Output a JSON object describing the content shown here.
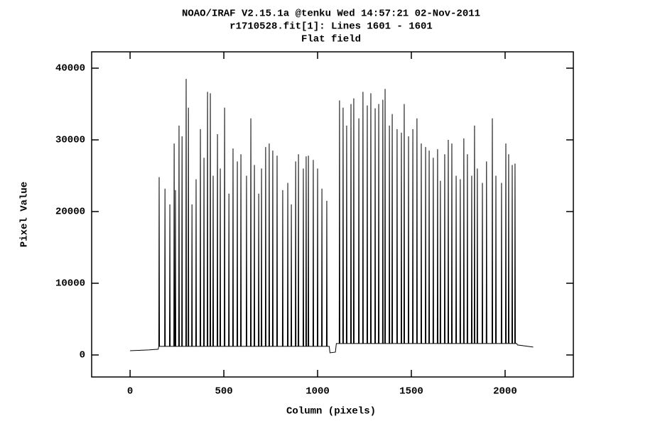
{
  "chart_data": {
    "type": "line",
    "title": [
      "NOAO/IRAF V2.15.1a @tenku Wed 14:57:21 02-Nov-2011",
      "r1710528.fit[1]: Lines 1601 - 1601",
      "Flat field"
    ],
    "xlabel": "Column (pixels)",
    "ylabel": "Pixel Value",
    "color": "#000000",
    "xlim": [
      -205,
      2364
    ],
    "ylim": [
      -3070,
      42280
    ],
    "xticks": [
      0,
      500,
      1000,
      1500,
      2000
    ],
    "yticks": [
      0,
      10000,
      20000,
      30000,
      40000
    ],
    "x": [
      0,
      100,
      150,
      153,
      155,
      157,
      184,
      186,
      188,
      210,
      212,
      214,
      233,
      235,
      237,
      240,
      242,
      244,
      259,
      261,
      263,
      275,
      277,
      279,
      297,
      299,
      301,
      309,
      311,
      313,
      328,
      330,
      332,
      350,
      352,
      354,
      373,
      375,
      377,
      392,
      394,
      396,
      411,
      413,
      415,
      426,
      428,
      430,
      441,
      443,
      445,
      464,
      466,
      468,
      479,
      481,
      483,
      502,
      504,
      506,
      525,
      527,
      529,
      547,
      549,
      551,
      570,
      572,
      574,
      589,
      591,
      593,
      619,
      621,
      623,
      642,
      644,
      646,
      661,
      663,
      665,
      684,
      686,
      688,
      699,
      701,
      703,
      721,
      723,
      725,
      740,
      742,
      744,
      759,
      761,
      763,
      782,
      784,
      786,
      812,
      814,
      816,
      839,
      841,
      843,
      858,
      860,
      862,
      881,
      883,
      885,
      896,
      898,
      900,
      922,
      924,
      926,
      937,
      939,
      941,
      949,
      951,
      953,
      975,
      977,
      979,
      998,
      1000,
      1002,
      1021,
      1023,
      1025,
      1047,
      1049,
      1051,
      1062,
      1066,
      1095,
      1100,
      1115,
      1117,
      1119,
      1134,
      1136,
      1138,
      1153,
      1155,
      1157,
      1176,
      1178,
      1180,
      1191,
      1193,
      1195,
      1218,
      1220,
      1222,
      1240,
      1242,
      1244,
      1263,
      1265,
      1267,
      1282,
      1284,
      1286,
      1305,
      1307,
      1309,
      1324,
      1326,
      1328,
      1346,
      1348,
      1350,
      1358,
      1360,
      1362,
      1381,
      1383,
      1385,
      1396,
      1398,
      1400,
      1422,
      1424,
      1426,
      1445,
      1447,
      1449,
      1460,
      1462,
      1464,
      1483,
      1485,
      1487,
      1506,
      1508,
      1510,
      1528,
      1530,
      1532,
      1551,
      1553,
      1555,
      1574,
      1576,
      1578,
      1593,
      1595,
      1597,
      1615,
      1617,
      1619,
      1638,
      1640,
      1642,
      1653,
      1655,
      1657,
      1676,
      1678,
      1680,
      1695,
      1697,
      1699,
      1714,
      1716,
      1718,
      1737,
      1739,
      1741,
      1759,
      1761,
      1763,
      1778,
      1780,
      1782,
      1797,
      1799,
      1801,
      1820,
      1822,
      1824,
      1835,
      1837,
      1839,
      1850,
      1852,
      1854,
      1877,
      1879,
      1881,
      1899,
      1901,
      1903,
      1930,
      1932,
      1934,
      1949,
      1951,
      1953,
      1979,
      1981,
      1983,
      2002,
      2004,
      2006,
      2017,
      2019,
      2021,
      2036,
      2038,
      2040,
      2051,
      2053,
      2055,
      2062,
      2066,
      2150
    ],
    "values": [
      600,
      700,
      800,
      1200,
      24800,
      1200,
      1200,
      23200,
      1200,
      1200,
      21000,
      1200,
      1200,
      29500,
      1200,
      1200,
      23000,
      1200,
      1200,
      32000,
      1200,
      1200,
      30500,
      1200,
      1200,
      38500,
      1200,
      1200,
      34500,
      1200,
      1200,
      21000,
      1200,
      1200,
      24500,
      1200,
      1200,
      31500,
      1200,
      1200,
      27500,
      1200,
      1200,
      36700,
      1200,
      1200,
      36500,
      1200,
      1200,
      25000,
      1200,
      1200,
      30800,
      1200,
      1200,
      26000,
      1200,
      1200,
      34500,
      1200,
      1200,
      22500,
      1200,
      1200,
      28800,
      1200,
      1200,
      27000,
      1200,
      1200,
      28000,
      1200,
      1200,
      25000,
      1200,
      1200,
      33000,
      1200,
      1200,
      26500,
      1200,
      1200,
      22500,
      1200,
      1200,
      26000,
      1200,
      1200,
      29000,
      1200,
      1200,
      29500,
      1200,
      1200,
      28500,
      1200,
      1200,
      27800,
      1200,
      1200,
      23000,
      1200,
      1200,
      24000,
      1200,
      1200,
      21000,
      1200,
      1200,
      27000,
      1200,
      1200,
      28000,
      1200,
      1200,
      26000,
      1200,
      1200,
      27700,
      1200,
      1200,
      27800,
      1200,
      1200,
      27200,
      1200,
      1200,
      26000,
      1200,
      1200,
      23200,
      1200,
      1200,
      21500,
      1200,
      1200,
      300,
      400,
      1600,
      1600,
      35500,
      1600,
      1600,
      34500,
      1600,
      1600,
      32000,
      1600,
      1600,
      35000,
      1600,
      1600,
      35800,
      1600,
      1600,
      33000,
      1600,
      1600,
      36700,
      1600,
      1600,
      34800,
      1600,
      1600,
      36500,
      1600,
      1600,
      34400,
      1600,
      1600,
      35000,
      1600,
      1600,
      35600,
      1600,
      1600,
      37100,
      1600,
      1600,
      32000,
      1600,
      1600,
      33600,
      1600,
      1600,
      31500,
      1600,
      1600,
      31000,
      1600,
      1600,
      35000,
      1600,
      1600,
      30500,
      1600,
      1600,
      31500,
      1600,
      1600,
      33000,
      1600,
      1600,
      29500,
      1600,
      1600,
      29000,
      1600,
      1600,
      28500,
      1600,
      1600,
      27500,
      1600,
      1600,
      28700,
      1600,
      1600,
      24300,
      1600,
      1600,
      28000,
      1600,
      1600,
      30000,
      1600,
      1600,
      29500,
      1600,
      1600,
      25000,
      1600,
      1600,
      24500,
      1600,
      1600,
      30200,
      1600,
      1600,
      28000,
      1600,
      1600,
      25000,
      1600,
      1600,
      32000,
      1600,
      1600,
      26000,
      1600,
      1600,
      24000,
      1600,
      1600,
      27000,
      1600,
      1600,
      33000,
      1600,
      1600,
      25000,
      1600,
      1600,
      24000,
      1600,
      1600,
      29500,
      1600,
      1600,
      28000,
      1600,
      1600,
      26500,
      1600,
      1600,
      26700,
      1600,
      1600,
      1400,
      1100
    ]
  }
}
